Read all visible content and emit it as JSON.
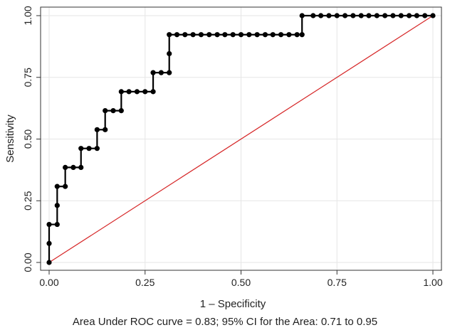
{
  "chart_data": {
    "type": "line",
    "title": "",
    "xlabel": "1 – Specificity",
    "ylabel": "Sensitivity",
    "xlim": [
      0,
      1
    ],
    "ylim": [
      0,
      1
    ],
    "x_ticks": [
      "0.00",
      "0.25",
      "0.50",
      "0.75",
      "1.00"
    ],
    "y_ticks": [
      "0.00",
      "0.25",
      "0.50",
      "0.75",
      "1.00"
    ],
    "grid": true,
    "legend": "none",
    "colors": {
      "curve": "#000000",
      "reference": "#d62728",
      "grid": "#e6e6e6"
    },
    "series": [
      {
        "x": [
          0,
          0,
          0,
          0.021,
          0.021,
          0.021,
          0.042,
          0.042,
          0.063,
          0.083,
          0.083,
          0.104,
          0.125,
          0.125,
          0.146,
          0.146,
          0.167,
          0.188,
          0.188,
          0.208,
          0.229,
          0.25,
          0.271,
          0.271,
          0.292,
          0.313,
          0.313,
          0.313,
          0.333,
          0.354,
          0.375,
          0.396,
          0.417,
          0.438,
          0.458,
          0.479,
          0.5,
          0.521,
          0.542,
          0.563,
          0.583,
          0.604,
          0.625,
          0.646,
          0.659,
          0.659,
          0.688,
          0.708,
          0.729,
          0.75,
          0.771,
          0.792,
          0.813,
          0.833,
          0.854,
          0.875,
          0.896,
          0.917,
          0.938,
          0.958,
          0.979,
          1.0
        ],
        "y": [
          0,
          0.077,
          0.154,
          0.154,
          0.231,
          0.308,
          0.308,
          0.385,
          0.385,
          0.385,
          0.462,
          0.462,
          0.462,
          0.538,
          0.538,
          0.615,
          0.615,
          0.615,
          0.692,
          0.692,
          0.692,
          0.692,
          0.692,
          0.769,
          0.769,
          0.769,
          0.846,
          0.923,
          0.923,
          0.923,
          0.923,
          0.923,
          0.923,
          0.923,
          0.923,
          0.923,
          0.923,
          0.923,
          0.923,
          0.923,
          0.923,
          0.923,
          0.923,
          0.923,
          0.923,
          1.0,
          1.0,
          1.0,
          1.0,
          1.0,
          1.0,
          1.0,
          1.0,
          1.0,
          1.0,
          1.0,
          1.0,
          1.0,
          1.0,
          1.0,
          1.0,
          1.0
        ]
      },
      {
        "x": [
          0,
          1
        ],
        "y": [
          0,
          1
        ]
      }
    ],
    "annotation": "Area Under ROC curve = 0.83; 95% CI for the Area: 0.71 to 0.95"
  }
}
